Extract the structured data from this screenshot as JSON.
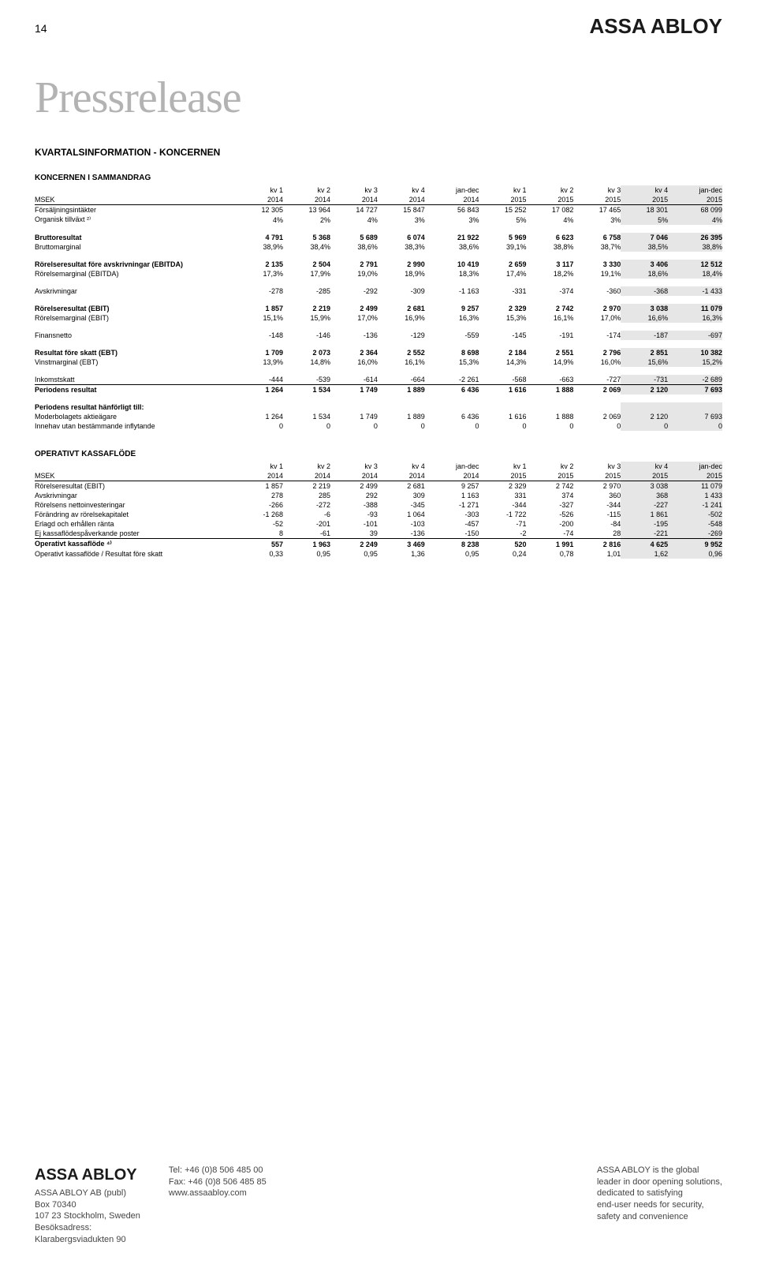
{
  "page_number": "14",
  "brand_top": "ASSA ABLOY",
  "press_title": "Pressrelease",
  "section_title": "KVARTALSINFORMATION - KONCERNEN",
  "colors": {
    "shade_bg": "#e6e6e6",
    "press_title_color": "#b3b3b3",
    "text": "#000000",
    "footer_text": "#444444",
    "bg": "#ffffff"
  },
  "column_headers": {
    "h1": [
      "kv 1",
      "kv 2",
      "kv 3",
      "kv 4",
      "jan-dec",
      "kv 1",
      "kv 2",
      "kv 3",
      "kv 4",
      "jan-dec"
    ],
    "h2_label": "MSEK",
    "h2": [
      "2014",
      "2014",
      "2014",
      "2014",
      "2014",
      "2015",
      "2015",
      "2015",
      "2015",
      "2015"
    ]
  },
  "table1": {
    "caption": "KONCERNEN I SAMMANDRAG",
    "rows": [
      {
        "label": "Försäljningsintäkter",
        "v": [
          "12 305",
          "13 964",
          "14 727",
          "15 847",
          "56 843",
          "15 252",
          "17 082",
          "17 465",
          "18 301",
          "68 099"
        ]
      },
      {
        "label": "Organisk tillväxt ²⁾",
        "v": [
          "4%",
          "2%",
          "4%",
          "3%",
          "3%",
          "5%",
          "4%",
          "3%",
          "5%",
          "4%"
        ]
      },
      {
        "spacer": true
      },
      {
        "label": "Bruttoresultat",
        "v": [
          "4 791",
          "5 368",
          "5 689",
          "6 074",
          "21 922",
          "5 969",
          "6 623",
          "6 758",
          "7 046",
          "26 395"
        ],
        "bold": true
      },
      {
        "label": "Bruttomarginal",
        "v": [
          "38,9%",
          "38,4%",
          "38,6%",
          "38,3%",
          "38,6%",
          "39,1%",
          "38,8%",
          "38,7%",
          "38,5%",
          "38,8%"
        ]
      },
      {
        "spacer": true
      },
      {
        "label": "Rörelseresultat före avskrivningar (EBITDA)",
        "v": [
          "2 135",
          "2 504",
          "2 791",
          "2 990",
          "10 419",
          "2 659",
          "3 117",
          "3 330",
          "3 406",
          "12 512"
        ],
        "bold": true
      },
      {
        "label": "Rörelsemarginal (EBITDA)",
        "v": [
          "17,3%",
          "17,9%",
          "19,0%",
          "18,9%",
          "18,3%",
          "17,4%",
          "18,2%",
          "19,1%",
          "18,6%",
          "18,4%"
        ]
      },
      {
        "spacer": true
      },
      {
        "label": "Avskrivningar",
        "v": [
          "-278",
          "-285",
          "-292",
          "-309",
          "-1 163",
          "-331",
          "-374",
          "-360",
          "-368",
          "-1 433"
        ]
      },
      {
        "spacer": true
      },
      {
        "label": "Rörelseresultat (EBIT)",
        "v": [
          "1 857",
          "2 219",
          "2 499",
          "2 681",
          "9 257",
          "2 329",
          "2 742",
          "2 970",
          "3 038",
          "11 079"
        ],
        "bold": true
      },
      {
        "label": "Rörelsemarginal (EBIT)",
        "v": [
          "15,1%",
          "15,9%",
          "17,0%",
          "16,9%",
          "16,3%",
          "15,3%",
          "16,1%",
          "17,0%",
          "16,6%",
          "16,3%"
        ]
      },
      {
        "spacer": true
      },
      {
        "label": "Finansnetto",
        "v": [
          "-148",
          "-146",
          "-136",
          "-129",
          "-559",
          "-145",
          "-191",
          "-174",
          "-187",
          "-697"
        ]
      },
      {
        "spacer": true
      },
      {
        "label": "Resultat före skatt (EBT)",
        "v": [
          "1 709",
          "2 073",
          "2 364",
          "2 552",
          "8 698",
          "2 184",
          "2 551",
          "2 796",
          "2 851",
          "10 382"
        ],
        "bold": true
      },
      {
        "label": "Vinstmarginal (EBT)",
        "v": [
          "13,9%",
          "14,8%",
          "16,0%",
          "16,1%",
          "15,3%",
          "14,3%",
          "14,9%",
          "16,0%",
          "15,6%",
          "15,2%"
        ]
      },
      {
        "spacer": true
      },
      {
        "label": "Inkomstskatt",
        "v": [
          "-444",
          "-539",
          "-614",
          "-664",
          "-2 261",
          "-568",
          "-663",
          "-727",
          "-731",
          "-2 689"
        ]
      },
      {
        "label": "Periodens resultat",
        "v": [
          "1 264",
          "1 534",
          "1 749",
          "1 889",
          "6 436",
          "1 616",
          "1 888",
          "2 069",
          "2 120",
          "7 693"
        ],
        "bold": true,
        "underline_top": true
      },
      {
        "spacer": true
      },
      {
        "label": "Periodens resultat hänförligt till:",
        "v": [
          "",
          "",
          "",
          "",
          "",
          "",
          "",
          "",
          "",
          ""
        ],
        "bold": true
      },
      {
        "label": "Moderbolagets aktieägare",
        "v": [
          "1 264",
          "1 534",
          "1 749",
          "1 889",
          "6 436",
          "1 616",
          "1 888",
          "2 069",
          "2 120",
          "7 693"
        ]
      },
      {
        "label": "Innehav utan bestämmande inflytande",
        "v": [
          "0",
          "0",
          "0",
          "0",
          "0",
          "0",
          "0",
          "0",
          "0",
          "0"
        ]
      }
    ]
  },
  "table2": {
    "caption": "OPERATIVT KASSAFLÖDE",
    "rows": [
      {
        "label": "Rörelseresultat (EBIT)",
        "v": [
          "1 857",
          "2 219",
          "2 499",
          "2 681",
          "9 257",
          "2 329",
          "2 742",
          "2 970",
          "3 038",
          "11 079"
        ]
      },
      {
        "label": "Avskrivningar",
        "v": [
          "278",
          "285",
          "292",
          "309",
          "1 163",
          "331",
          "374",
          "360",
          "368",
          "1 433"
        ]
      },
      {
        "label": "Rörelsens nettoinvesteringar",
        "v": [
          "-266",
          "-272",
          "-388",
          "-345",
          "-1 271",
          "-344",
          "-327",
          "-344",
          "-227",
          "-1 241"
        ]
      },
      {
        "label": "Förändring av rörelsekapitalet",
        "v": [
          "-1 268",
          "-6",
          "-93",
          "1 064",
          "-303",
          "-1 722",
          "-526",
          "-115",
          "1 861",
          "-502"
        ]
      },
      {
        "label": "Erlagd och erhållen ränta",
        "v": [
          "-52",
          "-201",
          "-101",
          "-103",
          "-457",
          "-71",
          "-200",
          "-84",
          "-195",
          "-548"
        ]
      },
      {
        "label": "Ej kassaflödespåverkande poster",
        "v": [
          "8",
          "-61",
          "39",
          "-136",
          "-150",
          "-2",
          "-74",
          "28",
          "-221",
          "-269"
        ]
      },
      {
        "label": "Operativt kassaflöde ⁴⁾",
        "v": [
          "557",
          "1 963",
          "2 249",
          "3 469",
          "8 238",
          "520",
          "1 991",
          "2 816",
          "4 625",
          "9 952"
        ],
        "bold": true,
        "underline_top": true
      },
      {
        "label": "Operativt kassaflöde / Resultat före skatt",
        "v": [
          "0,33",
          "0,95",
          "0,95",
          "1,36",
          "0,95",
          "0,24",
          "0,78",
          "1,01",
          "1,62",
          "0,96"
        ]
      }
    ]
  },
  "footer": {
    "brand": "ASSA ABLOY",
    "addr": [
      "ASSA ABLOY AB (publ)",
      "Box 70340",
      "107 23 Stockholm, Sweden",
      "Besöksadress:",
      "Klarabergsviadukten 90"
    ],
    "contact": [
      "Tel: +46 (0)8 506 485 00",
      "Fax: +46 (0)8 506 485 85",
      "www.assaabloy.com"
    ],
    "tagline": [
      "ASSA ABLOY is the global",
      "leader in door opening solutions,",
      "dedicated to satisfying",
      "end-user needs for security,",
      "safety and convenience"
    ]
  }
}
